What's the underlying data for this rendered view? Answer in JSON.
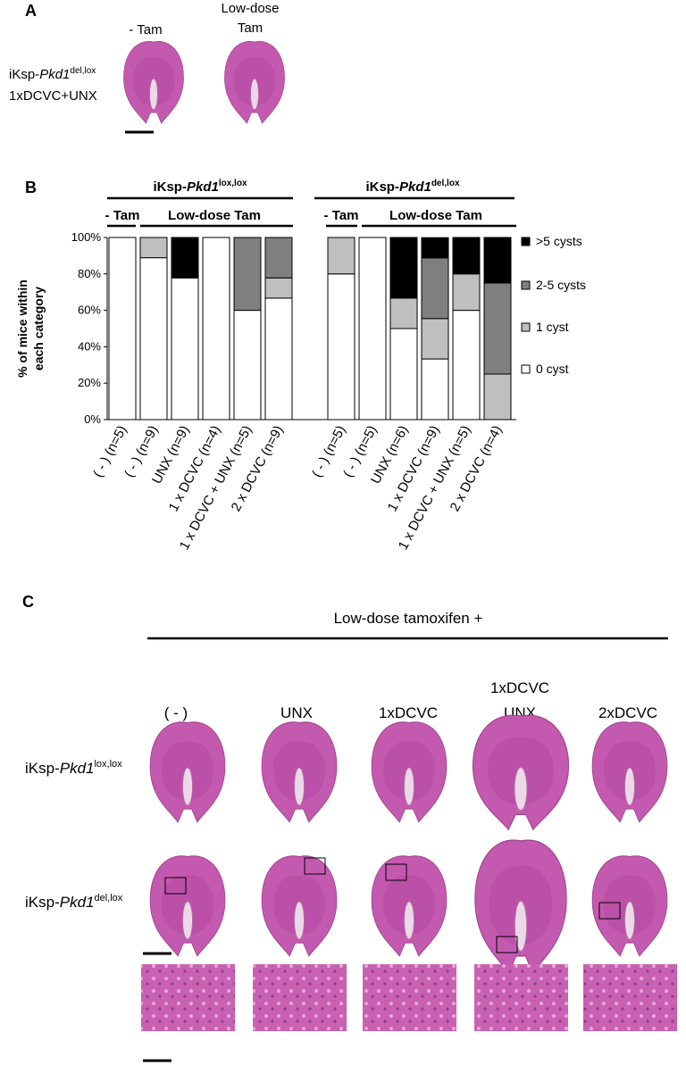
{
  "panel_a": {
    "letter": "A",
    "columns": [
      "- Tam",
      [
        "Low-dose",
        "Tam"
      ]
    ],
    "row_label": {
      "prefix": "iKsp-",
      "gene": "Pkd1",
      "allele": "del,lox",
      "treatment": "1xDCVC+UNX"
    }
  },
  "panel_b": {
    "letter": "B"
  },
  "chart_data": {
    "type": "stacked_bar",
    "ylabel": [
      "% of mice within",
      "each category"
    ],
    "groups": [
      {
        "prefix": "iKsp-",
        "gene": "Pkd1",
        "allele": "lox,lox",
        "subgroups": [
          "- Tam",
          "Low-dose Tam"
        ]
      },
      {
        "prefix": "iKsp-",
        "gene": "Pkd1",
        "allele": "del,lox",
        "subgroups": [
          "- Tam",
          "Low-dose Tam"
        ]
      }
    ],
    "categories": [
      "( - ) (n=5)",
      "( - ) (n=9)",
      "UNX (n=9)",
      "1 x DCVC (n=4)",
      "1 x DCVC + UNX (n=5)",
      "2 x DCVC (n=9)",
      "( - ) (n=5)",
      "( - ) (n=5)",
      "UNX (n=6)",
      "1 x DCVC (n=9)",
      "1 x DCVC + UNX (n=5)",
      "2 x DCVC (n=4)"
    ],
    "series": [
      {
        "name": "0 cyst",
        "color": "#ffffff",
        "values": [
          100,
          88.9,
          77.8,
          100,
          60,
          66.7,
          80,
          100,
          50,
          33.3,
          60,
          0
        ]
      },
      {
        "name": "1 cyst",
        "color": "#bfbfbf",
        "values": [
          0,
          11.1,
          0,
          0,
          0,
          11.1,
          20,
          0,
          16.7,
          22.2,
          20,
          25
        ]
      },
      {
        "name": "2-5 cysts",
        "color": "#7f7f7f",
        "values": [
          0,
          0,
          0,
          0,
          40,
          22.2,
          0,
          0,
          0,
          33.3,
          0,
          50
        ]
      },
      {
        "name": ">5 cysts",
        "color": "#000000",
        "values": [
          0,
          0,
          22.2,
          0,
          0,
          0,
          0,
          0,
          33.3,
          11.1,
          20,
          25
        ]
      }
    ],
    "ylim": [
      0,
      100
    ],
    "yticks": [
      {
        "value": 0,
        "label": "0%"
      },
      {
        "value": 20,
        "label": "20%"
      },
      {
        "value": 40,
        "label": "40%"
      },
      {
        "value": 60,
        "label": "60%"
      },
      {
        "value": 80,
        "label": "80%"
      },
      {
        "value": 100,
        "label": "100%"
      }
    ],
    "grid": false,
    "legend": "right"
  },
  "panel_c": {
    "letter": "C",
    "title": "Low-dose tamoxifen +",
    "columns": [
      [
        "( - )"
      ],
      [
        "UNX"
      ],
      [
        "1xDCVC"
      ],
      [
        "1xDCVC",
        "UNX"
      ],
      [
        "2xDCVC"
      ]
    ],
    "rows": [
      {
        "prefix": "iKsp-",
        "gene": "Pkd1",
        "allele": "lox,lox"
      },
      {
        "prefix": "iKsp-",
        "gene": "Pkd1",
        "allele": "del,lox"
      }
    ]
  }
}
